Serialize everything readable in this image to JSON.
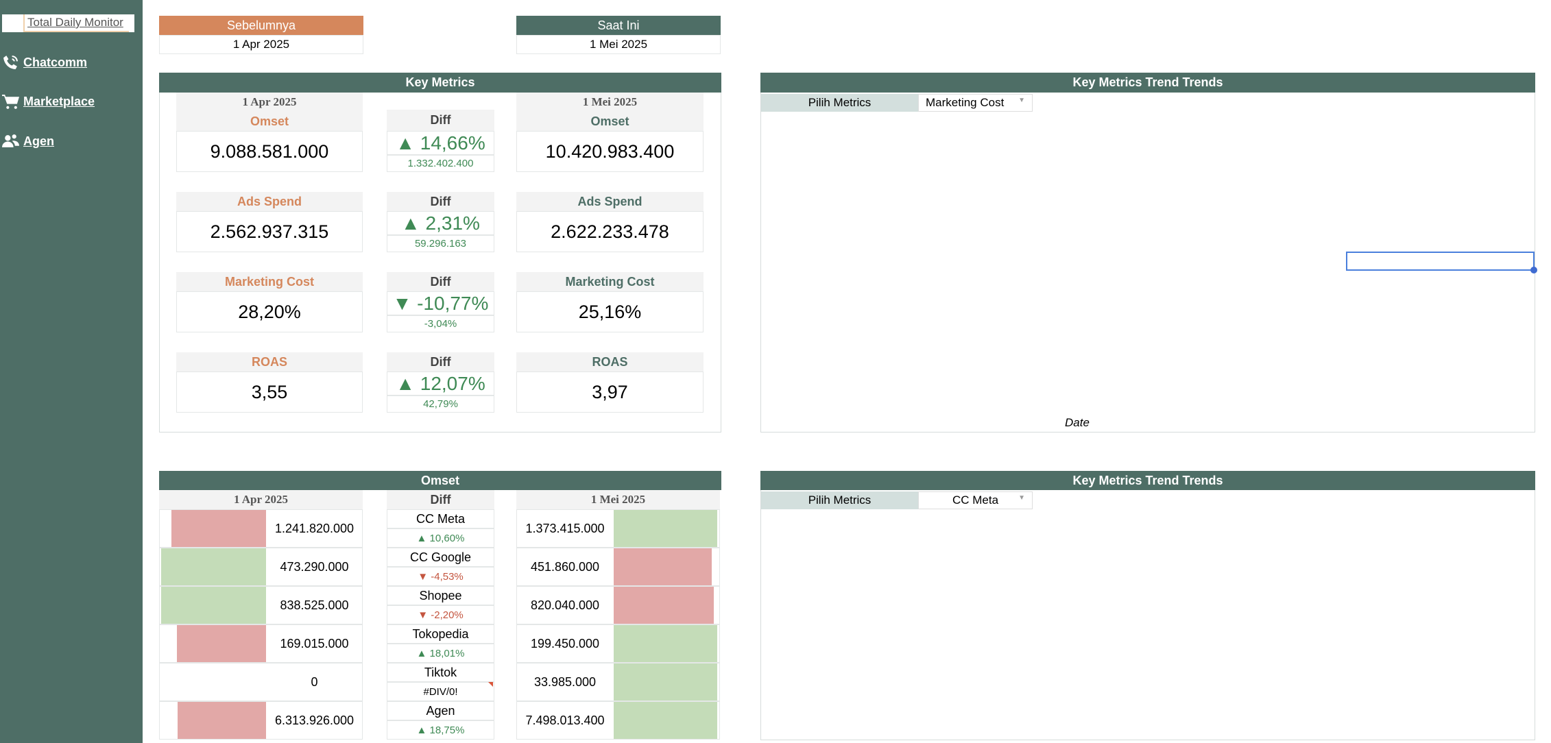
{
  "sidebar": {
    "items": [
      {
        "label": "Total Daily Monitor",
        "icon": "bars-icon"
      },
      {
        "label": "Chatcomm",
        "icon": "phone-icon"
      },
      {
        "label": "Marketplace",
        "icon": "cart-icon"
      },
      {
        "label": "Agen",
        "icon": "users-icon"
      }
    ]
  },
  "period": {
    "prev_label": "Sebelumnya",
    "prev_date": "1 Apr 2025",
    "curr_label": "Saat Ini",
    "curr_date": "1 Mei 2025"
  },
  "key_metrics": {
    "title": "Key Metrics",
    "prev_date": "1 Apr 2025",
    "curr_date": "1 Mei 2025",
    "diff_label": "Diff",
    "rows": [
      {
        "label": "Omset",
        "prev": "9.088.581.000",
        "curr": "10.420.983.400",
        "diff_pct": "▲ 14,66%",
        "diff_abs": "1.332.402.400",
        "dir": "up"
      },
      {
        "label": "Ads Spend",
        "prev": "2.562.937.315",
        "curr": "2.622.233.478",
        "diff_pct": "▲ 2,31%",
        "diff_abs": "59.296.163",
        "dir": "up"
      },
      {
        "label": "Marketing Cost",
        "prev": "28,20%",
        "curr": "25,16%",
        "diff_pct": "▼ -10,77%",
        "diff_abs": "-3,04%",
        "dir": "up"
      },
      {
        "label": "ROAS",
        "prev": "3,55",
        "curr": "3,97",
        "diff_pct": "▲ 12,07%",
        "diff_abs": "42,79%",
        "dir": "up"
      }
    ]
  },
  "trend_top": {
    "title": "Key Metrics Trend Trends",
    "pick_label": "Pilih Metrics",
    "selected": "Marketing Cost",
    "x_label": "Date"
  },
  "omset": {
    "title": "Omset",
    "prev_date": "1 Apr 2025",
    "curr_date": "1 Mei 2025",
    "diff_label": "Diff",
    "rows": [
      {
        "channel": "CC Meta",
        "prev": "1.241.820.000",
        "curr": "1.373.415.000",
        "diff": "▲ 10,60%",
        "dir": "up",
        "prev_bar": 0.9,
        "prev_color": "red",
        "curr_bar": 1.0,
        "curr_color": "green"
      },
      {
        "channel": "CC Google",
        "prev": "473.290.000",
        "curr": "451.860.000",
        "diff": "▼ -4,53%",
        "dir": "down",
        "prev_bar": 1.0,
        "prev_color": "green",
        "curr_bar": 0.95,
        "curr_color": "red"
      },
      {
        "channel": "Shopee",
        "prev": "838.525.000",
        "curr": "820.040.000",
        "diff": "▼ -2,20%",
        "dir": "down",
        "prev_bar": 1.0,
        "prev_color": "green",
        "curr_bar": 0.97,
        "curr_color": "red"
      },
      {
        "channel": "Tokopedia",
        "prev": "169.015.000",
        "curr": "199.450.000",
        "diff": "▲ 18,01%",
        "dir": "up",
        "prev_bar": 0.85,
        "prev_color": "red",
        "curr_bar": 1.0,
        "curr_color": "green"
      },
      {
        "channel": "Tiktok",
        "prev": "0",
        "curr": "33.985.000",
        "diff": "#DIV/0!",
        "dir": "none",
        "prev_bar": 0,
        "prev_color": "none",
        "curr_bar": 1.0,
        "curr_color": "green"
      },
      {
        "channel": "Agen",
        "prev": "6.313.926.000",
        "curr": "7.498.013.400",
        "diff": "▲ 18,75%",
        "dir": "up",
        "prev_bar": 0.84,
        "prev_color": "red",
        "curr_bar": 1.0,
        "curr_color": "green"
      }
    ]
  },
  "trend_bottom": {
    "title": "Key Metrics Trend Trends",
    "pick_label": "Pilih Metrics",
    "selected": "CC Meta"
  },
  "colors": {
    "brand": "#4e6e66",
    "prev": "#d5875c",
    "up": "#3f8a55",
    "down": "#c4553f",
    "bar_red": "#e2a8a7",
    "bar_green": "#c4dcb8"
  }
}
